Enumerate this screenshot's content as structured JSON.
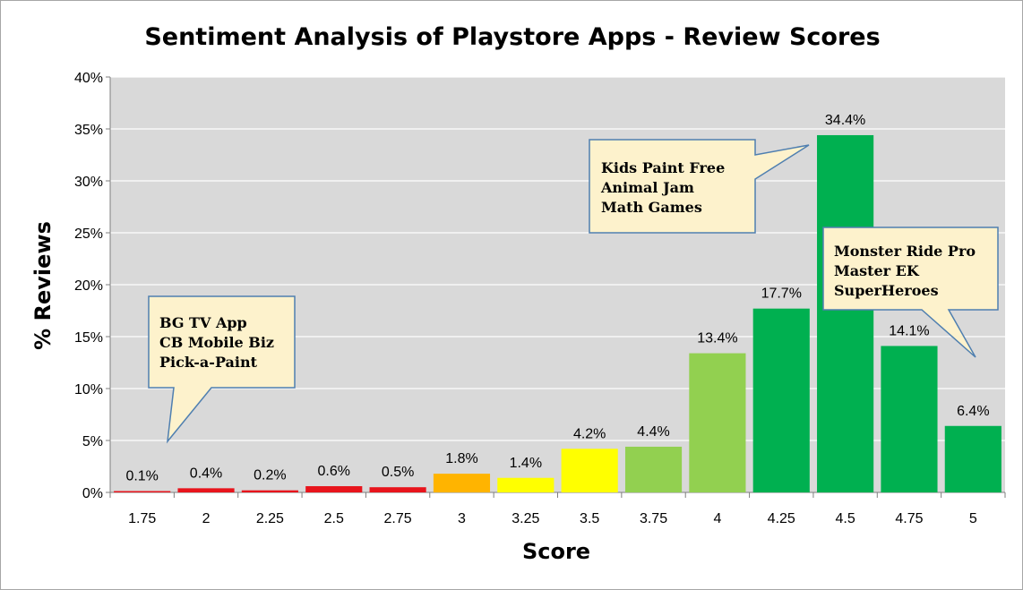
{
  "chart_data": {
    "type": "bar",
    "title": "Sentiment Analysis of Playstore Apps - Review Scores",
    "xlabel": "Score",
    "ylabel": "% Reviews",
    "categories": [
      "1.75",
      "2",
      "2.25",
      "2.5",
      "2.75",
      "3",
      "3.25",
      "3.5",
      "3.75",
      "4",
      "4.25",
      "4.5",
      "4.75",
      "5"
    ],
    "values": [
      0.1,
      0.4,
      0.2,
      0.6,
      0.5,
      1.8,
      1.4,
      4.2,
      4.4,
      13.4,
      17.7,
      34.4,
      14.1,
      6.4
    ],
    "value_labels": [
      "0.1%",
      "0.4%",
      "0.2%",
      "0.6%",
      "0.5%",
      "1.8%",
      "1.4%",
      "4.2%",
      "4.4%",
      "13.4%",
      "17.7%",
      "34.4%",
      "14.1%",
      "6.4%"
    ],
    "bar_colors": [
      "#e8141c",
      "#e8141c",
      "#e8141c",
      "#e8141c",
      "#e8141c",
      "#ffb400",
      "#ffff00",
      "#ffff00",
      "#92d050",
      "#92d050",
      "#00b050",
      "#00b050",
      "#00b050",
      "#00b050"
    ],
    "ylim": [
      0,
      40
    ],
    "y_ticks": [
      0,
      5,
      10,
      15,
      20,
      25,
      30,
      35,
      40
    ],
    "y_tick_labels": [
      "0%",
      "5%",
      "10%",
      "15%",
      "20%",
      "25%",
      "30%",
      "35%",
      "40%"
    ],
    "grid": true,
    "plot_background": "#d9d9d9",
    "gridline_color": "#ffffff",
    "annotations": [
      {
        "lines": [
          "BG TV App",
          "CB Mobile Biz",
          "Pick-a-Paint"
        ],
        "points_to": "1.75"
      },
      {
        "lines": [
          "Kids Paint Free",
          "Animal Jam",
          "Math Games"
        ],
        "points_to": "4.5"
      },
      {
        "lines": [
          "Monster Ride Pro",
          "Master EK",
          "SuperHeroes"
        ],
        "points_to": "5"
      }
    ]
  }
}
